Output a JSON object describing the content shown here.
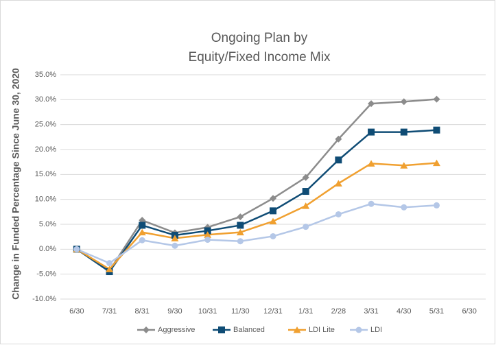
{
  "chart_data": {
    "type": "line",
    "title": [
      "Ongoing Plan by",
      "Equity/Fixed Income Mix"
    ],
    "y_label": "Change in Funded Percentage Since June 30, 2020",
    "categories": [
      "6/30",
      "7/31",
      "8/31",
      "9/30",
      "10/31",
      "11/30",
      "12/31",
      "1/31",
      "2/28",
      "3/31",
      "4/30",
      "5/31",
      "6/30"
    ],
    "series": [
      {
        "name": "Aggressive",
        "color": "#8c8c8c",
        "marker": "diamond",
        "values": [
          0,
          -4.3,
          5.8,
          3.3,
          4.4,
          6.5,
          10.2,
          14.4,
          22.1,
          29.2,
          29.6,
          30.1,
          null
        ]
      },
      {
        "name": "Balanced",
        "color": "#0f4c75",
        "marker": "square",
        "values": [
          0,
          -4.5,
          4.8,
          2.8,
          3.7,
          4.8,
          7.7,
          11.6,
          17.9,
          23.5,
          23.5,
          23.9,
          null
        ]
      },
      {
        "name": "LDI Lite",
        "color": "#f0a030",
        "marker": "triangle",
        "values": [
          0,
          -4.0,
          3.4,
          2.2,
          2.9,
          3.4,
          5.6,
          8.7,
          13.2,
          17.2,
          16.8,
          17.3,
          null
        ]
      },
      {
        "name": "LDI",
        "color": "#b4c7e7",
        "marker": "circle",
        "values": [
          0,
          -2.8,
          1.8,
          0.7,
          1.9,
          1.6,
          2.6,
          4.5,
          7.0,
          9.1,
          8.4,
          8.8,
          null
        ]
      }
    ],
    "ylim": [
      -10,
      35
    ],
    "yticks": [
      {
        "value": -10,
        "label": "-10.0%"
      },
      {
        "value": -5,
        "label": "-5.0%"
      },
      {
        "value": 0,
        "label": "0.0%"
      },
      {
        "value": 5,
        "label": "5.0%"
      },
      {
        "value": 10,
        "label": "10.0%"
      },
      {
        "value": 15,
        "label": "15.0%"
      },
      {
        "value": 20,
        "label": "20.0%"
      },
      {
        "value": 25,
        "label": "25.0%"
      },
      {
        "value": 30,
        "label": "30.0%"
      },
      {
        "value": 35,
        "label": "35.0%"
      }
    ],
    "grid": true,
    "legend": "bottom"
  }
}
